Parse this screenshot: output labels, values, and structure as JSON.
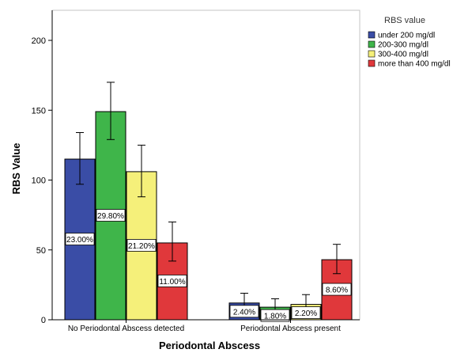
{
  "chart_data": {
    "type": "bar",
    "title": "",
    "xlabel": "Periodontal Abscess",
    "ylabel": "RBS Value",
    "ylim": [
      0,
      220
    ],
    "yticks": [
      0,
      50,
      100,
      150,
      200
    ],
    "grid": false,
    "legend_position": "top-right",
    "legend_title": "RBS value",
    "categories": [
      "No Periodontal Abscess detected",
      "Periodontal Abscess present"
    ],
    "series": [
      {
        "name": "under 200 mg/dl",
        "color": "#3a4da6",
        "values": [
          115,
          12
        ],
        "error_low": [
          97,
          6
        ],
        "error_high": [
          134,
          19
        ],
        "labels": [
          "23.00%",
          "2.40%"
        ]
      },
      {
        "name": "200-300 mg/dl",
        "color": "#3fb54a",
        "values": [
          149,
          9
        ],
        "error_low": [
          129,
          3
        ],
        "error_high": [
          170,
          15
        ],
        "labels": [
          "29.80%",
          "1.80%"
        ]
      },
      {
        "name": "300-400 mg/dl",
        "color": "#f5f07a",
        "values": [
          106,
          11
        ],
        "error_low": [
          88,
          5
        ],
        "error_high": [
          125,
          18
        ],
        "labels": [
          "21.20%",
          "2.20%"
        ]
      },
      {
        "name": "more than 400 mg/dl",
        "color": "#e0383b",
        "values": [
          55,
          43
        ],
        "error_low": [
          42,
          33
        ],
        "error_high": [
          70,
          54
        ],
        "labels": [
          "11.00%",
          "8.60%"
        ]
      }
    ]
  }
}
